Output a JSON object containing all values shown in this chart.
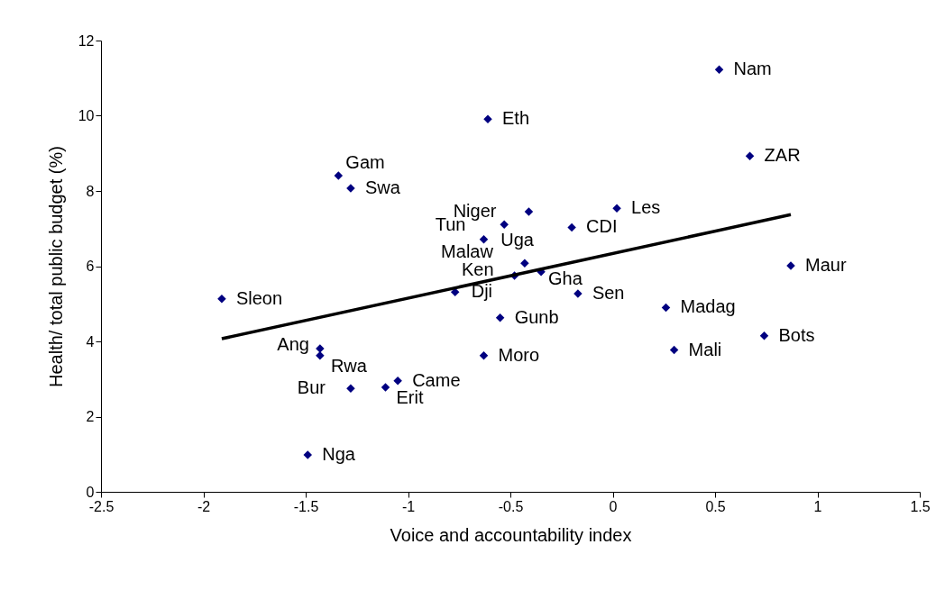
{
  "chart_data": {
    "type": "scatter",
    "xlabel": "Voice and accountability index",
    "ylabel": "Health/ total public budget (%)",
    "xlim": [
      -2.5,
      1.5
    ],
    "xticks": [
      -2.5,
      -2,
      -1.5,
      -1,
      -0.5,
      0,
      0.5,
      1,
      1.5
    ],
    "ylim": [
      0,
      12
    ],
    "yticks": [
      0,
      2,
      4,
      6,
      8,
      10,
      12
    ],
    "grid": false,
    "series": [
      {
        "marker": "diamond",
        "color": "#000080",
        "x": [
          -1.91,
          -1.34,
          -1.28,
          -1.43,
          -1.43,
          -1.28,
          -1.11,
          -1.05,
          -1.49,
          -0.63,
          -0.53,
          -0.41,
          -0.43,
          -0.48,
          -0.35,
          -0.77,
          -0.55,
          -0.63,
          -0.17,
          -0.2,
          0.02,
          -0.61,
          0.52,
          0.67,
          0.87,
          0.26,
          0.3,
          0.74
        ],
        "values": [
          5.13,
          8.41,
          8.07,
          3.81,
          3.62,
          2.75,
          2.78,
          2.95,
          0.98,
          6.71,
          7.11,
          7.45,
          6.08,
          5.75,
          5.85,
          5.31,
          4.63,
          3.62,
          5.27,
          7.03,
          7.54,
          9.91,
          11.23,
          8.93,
          6.01,
          4.9,
          3.77,
          4.15
        ]
      },
      {
        "type": "line",
        "color": "#000000",
        "x": [
          -1.91,
          0.87
        ],
        "values": [
          4.07,
          7.37
        ]
      }
    ],
    "annotations": [
      {
        "text": "Sleon",
        "x": -1.91,
        "y": 5.13
      },
      {
        "text": "Gam",
        "x": -1.34,
        "y": 8.41
      },
      {
        "text": "Swa",
        "x": -1.28,
        "y": 8.07
      },
      {
        "text": "Ang",
        "x": -1.43,
        "y": 3.81
      },
      {
        "text": "Rwa",
        "x": -1.43,
        "y": 3.62
      },
      {
        "text": "Bur",
        "x": -1.28,
        "y": 2.75
      },
      {
        "text": "Erit",
        "x": -1.11,
        "y": 2.78
      },
      {
        "text": "Came",
        "x": -1.05,
        "y": 2.95
      },
      {
        "text": "Nga",
        "x": -1.49,
        "y": 0.98
      },
      {
        "text": "Tun",
        "x": -0.63,
        "y": 6.71
      },
      {
        "text": "Uga",
        "x": -0.53,
        "y": 7.11
      },
      {
        "text": "Niger",
        "x": -0.41,
        "y": 7.45
      },
      {
        "text": "Malaw",
        "x": -0.43,
        "y": 6.08
      },
      {
        "text": "Ken",
        "x": -0.48,
        "y": 5.75
      },
      {
        "text": "Gha",
        "x": -0.35,
        "y": 5.85
      },
      {
        "text": "Dji",
        "x": -0.77,
        "y": 5.31
      },
      {
        "text": "Gunb",
        "x": -0.55,
        "y": 4.63
      },
      {
        "text": "Moro",
        "x": -0.63,
        "y": 3.62
      },
      {
        "text": "Sen",
        "x": -0.17,
        "y": 5.27
      },
      {
        "text": "CDI",
        "x": -0.2,
        "y": 7.03
      },
      {
        "text": "Les",
        "x": 0.02,
        "y": 7.54
      },
      {
        "text": "Eth",
        "x": -0.61,
        "y": 9.91
      },
      {
        "text": "Nam",
        "x": 0.52,
        "y": 11.23
      },
      {
        "text": "ZAR",
        "x": 0.67,
        "y": 8.93
      },
      {
        "text": "Maur",
        "x": 0.87,
        "y": 6.01
      },
      {
        "text": "Madag",
        "x": 0.26,
        "y": 4.9
      },
      {
        "text": "Mali",
        "x": 0.3,
        "y": 3.77
      },
      {
        "text": "Bots",
        "x": 0.74,
        "y": 4.15
      }
    ]
  }
}
